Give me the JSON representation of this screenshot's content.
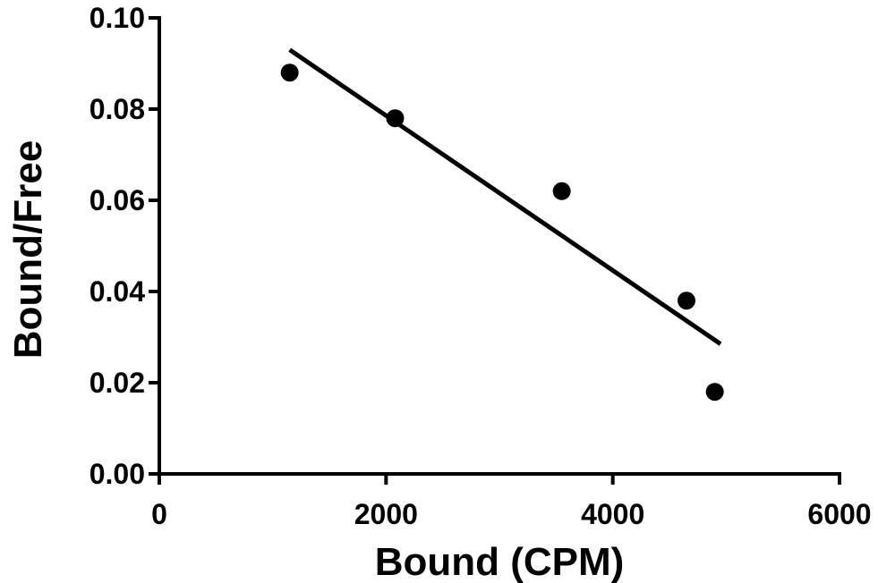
{
  "chart_data": {
    "type": "scatter",
    "xlabel": "Bound (CPM)",
    "ylabel": "Bound/Free",
    "xlim": [
      0,
      6000
    ],
    "ylim": [
      0,
      0.1
    ],
    "x_ticks": [
      "0",
      "2000",
      "4000",
      "6000"
    ],
    "y_ticks": [
      "0.00",
      "0.02",
      "0.04",
      "0.06",
      "0.08",
      "0.10"
    ],
    "x_tick_values": [
      0,
      2000,
      4000,
      6000
    ],
    "y_tick_values": [
      0,
      0.02,
      0.04,
      0.06,
      0.08,
      0.1
    ],
    "grid": false,
    "series": [
      {
        "x": [
          1150,
          2080,
          3550,
          4650,
          4900
        ],
        "y": [
          0.088,
          0.078,
          0.062,
          0.038,
          0.018
        ]
      }
    ],
    "fit_line": {
      "x": [
        1150,
        4950
      ],
      "y": [
        0.093,
        0.0285
      ]
    },
    "colors": {
      "points": "#000000",
      "line": "#000000",
      "axes": "#000000"
    }
  }
}
